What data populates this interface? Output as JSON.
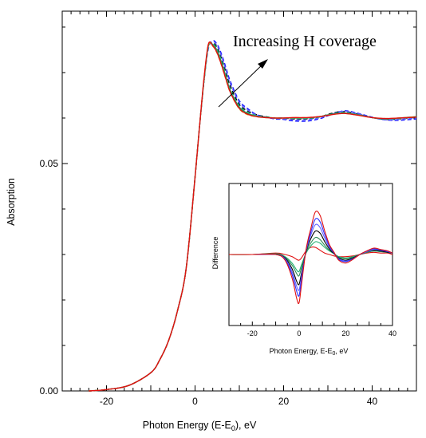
{
  "chart_data": [
    {
      "type": "line",
      "title": "",
      "xlabel": "Photon Energy (E-E",
      "xlabel_sub": "0",
      "xlabel_suffix": "),  eV",
      "ylabel": "Absorption",
      "xlim": [
        -30,
        50
      ],
      "ylim": [
        0.0,
        0.0835
      ],
      "xticks": [
        -20,
        0,
        20,
        40
      ],
      "yticks": [
        0.0,
        0.05
      ],
      "ytick_labels": [
        "0.00",
        "0.05"
      ],
      "grid": false,
      "legend": "none",
      "annotation": "Increasing H coverage",
      "series": [
        {
          "color": "#000000",
          "dash": "dashed",
          "x": [
            -24,
            -20,
            -15,
            -10,
            -8,
            -6,
            -4,
            -2,
            0,
            1,
            2,
            3,
            4,
            5,
            6,
            7,
            8,
            10,
            12,
            14,
            16,
            18,
            20,
            22,
            25,
            28,
            30,
            32,
            34,
            37,
            40,
            43,
            46,
            50
          ],
          "y": [
            0.0,
            0.0003,
            0.0012,
            0.004,
            0.0068,
            0.011,
            0.0175,
            0.027,
            0.047,
            0.058,
            0.068,
            0.0755,
            0.0765,
            0.0755,
            0.073,
            0.07,
            0.067,
            0.063,
            0.0615,
            0.0607,
            0.0603,
            0.06,
            0.06,
            0.0598,
            0.0598,
            0.0602,
            0.0608,
            0.0613,
            0.0614,
            0.0608,
            0.0601,
            0.0597,
            0.0598,
            0.0602
          ]
        },
        {
          "color": "#1a1aff",
          "dash": "dashed",
          "x": [
            -24,
            -20,
            -15,
            -10,
            -8,
            -6,
            -4,
            -2,
            0,
            1,
            2,
            3,
            4,
            5,
            6,
            7,
            8,
            10,
            12,
            14,
            16,
            18,
            20,
            22,
            25,
            28,
            30,
            32,
            34,
            37,
            40,
            43,
            46,
            50
          ],
          "y": [
            0.0,
            0.0003,
            0.0012,
            0.004,
            0.0068,
            0.011,
            0.0175,
            0.027,
            0.047,
            0.058,
            0.068,
            0.0752,
            0.077,
            0.0762,
            0.074,
            0.071,
            0.068,
            0.0638,
            0.062,
            0.0607,
            0.0602,
            0.0598,
            0.0597,
            0.0594,
            0.0593,
            0.0598,
            0.0605,
            0.0612,
            0.0616,
            0.061,
            0.0602,
            0.0596,
            0.0595,
            0.0598
          ]
        },
        {
          "color": "#6060ff",
          "dash": "dashed",
          "x": [
            -24,
            -20,
            -15,
            -10,
            -8,
            -6,
            -4,
            -2,
            0,
            1,
            2,
            3,
            4,
            5,
            6,
            7,
            8,
            10,
            12,
            14,
            16,
            18,
            20,
            22,
            25,
            28,
            30,
            32,
            34,
            37,
            40,
            43,
            46,
            50
          ],
          "y": [
            0.0,
            0.0003,
            0.0012,
            0.004,
            0.0068,
            0.011,
            0.0175,
            0.027,
            0.047,
            0.058,
            0.068,
            0.0754,
            0.0768,
            0.0759,
            0.0735,
            0.0705,
            0.0675,
            0.0634,
            0.0617,
            0.0606,
            0.0602,
            0.0599,
            0.0598,
            0.0596,
            0.0596,
            0.06,
            0.0606,
            0.0612,
            0.0615,
            0.0609,
            0.0601,
            0.0596,
            0.0597,
            0.06
          ]
        },
        {
          "color": "#2e8b57",
          "dash": "solid",
          "x": [
            -24,
            -20,
            -15,
            -10,
            -8,
            -6,
            -4,
            -2,
            0,
            1,
            2,
            3,
            4,
            5,
            6,
            7,
            8,
            10,
            12,
            14,
            16,
            18,
            20,
            22,
            25,
            28,
            30,
            32,
            34,
            37,
            40,
            43,
            46,
            50
          ],
          "y": [
            0.0,
            0.0003,
            0.0012,
            0.004,
            0.0068,
            0.011,
            0.0175,
            0.027,
            0.047,
            0.058,
            0.068,
            0.0758,
            0.0762,
            0.0748,
            0.0722,
            0.069,
            0.066,
            0.0624,
            0.061,
            0.0604,
            0.0602,
            0.06,
            0.06,
            0.06,
            0.06,
            0.0603,
            0.0607,
            0.061,
            0.0611,
            0.0607,
            0.0601,
            0.0598,
            0.06,
            0.0603
          ]
        },
        {
          "color": "#20b070",
          "dash": "dashed",
          "x": [
            -24,
            -20,
            -15,
            -10,
            -8,
            -6,
            -4,
            -2,
            0,
            1,
            2,
            3,
            4,
            5,
            6,
            7,
            8,
            10,
            12,
            14,
            16,
            18,
            20,
            22,
            25,
            28,
            30,
            32,
            34,
            37,
            40,
            43,
            46,
            50
          ],
          "y": [
            0.0,
            0.0003,
            0.0012,
            0.004,
            0.0068,
            0.011,
            0.0175,
            0.027,
            0.047,
            0.058,
            0.068,
            0.0756,
            0.0764,
            0.0751,
            0.0725,
            0.0693,
            0.0663,
            0.0627,
            0.0612,
            0.0605,
            0.0602,
            0.06,
            0.06,
            0.0599,
            0.0599,
            0.0602,
            0.0607,
            0.0611,
            0.0612,
            0.0607,
            0.0601,
            0.0598,
            0.0599,
            0.0602
          ]
        },
        {
          "color": "#d4a017",
          "dash": "dashed",
          "x": [
            -24,
            -20,
            -15,
            -10,
            -8,
            -6,
            -4,
            -2,
            0,
            1,
            2,
            3,
            4,
            5,
            6,
            7,
            8,
            10,
            12,
            14,
            16,
            18,
            20,
            22,
            25,
            28,
            30,
            32,
            34,
            37,
            40,
            43,
            46,
            50
          ],
          "y": [
            0.0,
            0.0003,
            0.0012,
            0.004,
            0.0068,
            0.011,
            0.0175,
            0.027,
            0.047,
            0.058,
            0.0685,
            0.076,
            0.0758,
            0.0742,
            0.0715,
            0.0684,
            0.0655,
            0.062,
            0.0607,
            0.0603,
            0.0601,
            0.06,
            0.06,
            0.0601,
            0.0601,
            0.0603,
            0.0606,
            0.0609,
            0.061,
            0.0606,
            0.0601,
            0.0599,
            0.06,
            0.0603
          ]
        },
        {
          "color": "#e01010",
          "dash": "solid",
          "x": [
            -24,
            -20,
            -15,
            -10,
            -8,
            -6,
            -4,
            -2,
            0,
            1,
            2,
            3,
            4,
            5,
            6,
            7,
            8,
            10,
            12,
            14,
            16,
            18,
            20,
            22,
            25,
            28,
            30,
            32,
            34,
            37,
            40,
            43,
            46,
            50
          ],
          "y": [
            0.0,
            0.0003,
            0.0012,
            0.004,
            0.0068,
            0.011,
            0.0175,
            0.027,
            0.047,
            0.058,
            0.0685,
            0.0762,
            0.0759,
            0.0743,
            0.0716,
            0.0685,
            0.0656,
            0.0621,
            0.0608,
            0.0603,
            0.0601,
            0.06,
            0.06,
            0.0601,
            0.0601,
            0.0603,
            0.0606,
            0.0609,
            0.061,
            0.0606,
            0.0601,
            0.0599,
            0.06,
            0.0602
          ]
        }
      ]
    },
    {
      "type": "line",
      "title": "",
      "xlabel": "Photon Energy, E-E",
      "xlabel_sub": "0",
      "xlabel_suffix": ", eV",
      "ylabel": "Difference",
      "xlim": [
        -30,
        40
      ],
      "ylim": [
        -1.0,
        1.0
      ],
      "xticks": [
        -20,
        0,
        20,
        40
      ],
      "grid": false,
      "legend": "none",
      "series": [
        {
          "color": "#e01010",
          "x": [
            -30,
            -20,
            -10,
            -6,
            -3,
            -1,
            0,
            1,
            3,
            5,
            7,
            9,
            11,
            13,
            15,
            17,
            20,
            23,
            26,
            29,
            32,
            35,
            38,
            40
          ],
          "y": [
            0.0,
            0.0,
            0.02,
            0.0,
            -0.03,
            -0.07,
            -0.08,
            -0.05,
            0.05,
            0.1,
            0.1,
            0.06,
            0.02,
            0.0,
            -0.02,
            -0.03,
            -0.03,
            -0.02,
            0.0,
            0.02,
            0.03,
            0.02,
            0.02,
            0.0
          ]
        },
        {
          "color": "#20b070",
          "x": [
            -30,
            -20,
            -10,
            -6,
            -3,
            -1,
            0,
            1,
            3,
            5,
            7,
            9,
            11,
            13,
            15,
            17,
            20,
            23,
            26,
            29,
            32,
            35,
            38,
            40
          ],
          "y": [
            0.0,
            0.0,
            0.01,
            -0.03,
            -0.12,
            -0.22,
            -0.24,
            -0.15,
            0.02,
            0.12,
            0.18,
            0.16,
            0.1,
            0.05,
            0.01,
            -0.03,
            -0.05,
            -0.03,
            0.0,
            0.03,
            0.05,
            0.04,
            0.03,
            0.02
          ]
        },
        {
          "color": "#2e8b57",
          "x": [
            -30,
            -20,
            -10,
            -6,
            -3,
            -1,
            0,
            1,
            3,
            5,
            7,
            9,
            11,
            13,
            15,
            17,
            20,
            23,
            26,
            29,
            32,
            35,
            38,
            40
          ],
          "y": [
            0.0,
            0.0,
            0.01,
            -0.04,
            -0.15,
            -0.27,
            -0.3,
            -0.19,
            0.03,
            0.16,
            0.24,
            0.21,
            0.13,
            0.06,
            0.01,
            -0.04,
            -0.06,
            -0.04,
            0.0,
            0.03,
            0.05,
            0.04,
            0.03,
            0.02
          ]
        },
        {
          "color": "#000000",
          "x": [
            -30,
            -20,
            -10,
            -6,
            -3,
            -1,
            0,
            1,
            3,
            5,
            7,
            9,
            11,
            13,
            15,
            17,
            20,
            23,
            26,
            29,
            32,
            35,
            38,
            40
          ],
          "y": [
            0.0,
            0.0,
            0.0,
            -0.05,
            -0.2,
            -0.38,
            -0.42,
            -0.27,
            0.04,
            0.22,
            0.33,
            0.3,
            0.18,
            0.08,
            0.01,
            -0.05,
            -0.08,
            -0.05,
            0.0,
            0.04,
            0.06,
            0.05,
            0.03,
            0.02
          ]
        },
        {
          "color": "#6060ff",
          "x": [
            -30,
            -20,
            -10,
            -6,
            -3,
            -1,
            0,
            1,
            3,
            5,
            7,
            9,
            11,
            13,
            15,
            17,
            20,
            23,
            26,
            29,
            32,
            35,
            38,
            40
          ],
          "y": [
            0.0,
            0.0,
            0.0,
            -0.06,
            -0.24,
            -0.45,
            -0.5,
            -0.32,
            0.05,
            0.27,
            0.42,
            0.38,
            0.23,
            0.1,
            0.02,
            -0.06,
            -0.09,
            -0.06,
            0.0,
            0.04,
            0.07,
            0.06,
            0.04,
            0.02
          ]
        },
        {
          "color": "#3030ff",
          "x": [
            -30,
            -20,
            -10,
            -6,
            -3,
            -1,
            0,
            1,
            3,
            5,
            7,
            9,
            11,
            13,
            15,
            17,
            20,
            23,
            26,
            29,
            32,
            35,
            38,
            40
          ],
          "y": [
            0.0,
            0.0,
            0.0,
            -0.07,
            -0.28,
            -0.52,
            -0.58,
            -0.37,
            0.06,
            0.31,
            0.5,
            0.46,
            0.28,
            0.12,
            0.02,
            -0.07,
            -0.1,
            -0.06,
            0.0,
            0.05,
            0.08,
            0.06,
            0.04,
            0.02
          ]
        },
        {
          "color": "#e01010",
          "x": [
            -30,
            -20,
            -10,
            -6,
            -3,
            -1,
            0,
            1,
            3,
            5,
            7,
            9,
            11,
            13,
            15,
            17,
            20,
            23,
            26,
            29,
            32,
            35,
            38,
            40
          ],
          "y": [
            0.0,
            0.0,
            0.0,
            -0.08,
            -0.33,
            -0.62,
            -0.68,
            -0.44,
            0.07,
            0.36,
            0.6,
            0.55,
            0.33,
            0.14,
            0.03,
            -0.08,
            -0.12,
            -0.07,
            0.0,
            0.05,
            0.09,
            0.07,
            0.05,
            0.02
          ]
        }
      ]
    }
  ]
}
